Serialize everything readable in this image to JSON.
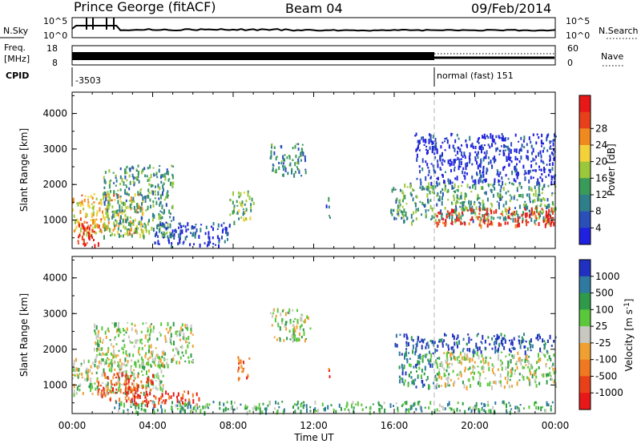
{
  "header": {
    "station": "Prince George (fitACF)",
    "beam": "Beam 04",
    "date": "09/Feb/2014"
  },
  "strip_panels": {
    "nsky_label": "N.Sky",
    "nsearch_label": "N.Search",
    "noise_tick_high": "10^5",
    "noise_tick_low": "10^0",
    "freq_label_line1": "Freq.",
    "freq_label_line2": "[MHz]",
    "freq_tick_high": "18",
    "freq_tick_low": "8",
    "nave_label": "Nave",
    "nave_tick_high": "60",
    "nave_tick_low": "0",
    "cpid_label": "CPID",
    "cpid_segments": [
      {
        "start_hour": 0,
        "text": "-3503"
      },
      {
        "start_hour": 18,
        "text": "normal (fast) 151"
      }
    ]
  },
  "x_axis": {
    "label": "Time UT",
    "ticks": [
      "00:00",
      "04:00",
      "08:00",
      "12:00",
      "16:00",
      "20:00",
      "00:00"
    ],
    "tick_hours": [
      0,
      4,
      8,
      12,
      16,
      20,
      24
    ]
  },
  "chart_data": [
    {
      "type": "heatmap",
      "panel": "power",
      "ylabel": "Slant Range [km]",
      "y_ticks": [
        "1000",
        "2000",
        "3000",
        "4000"
      ],
      "ylim": [
        200,
        4600
      ],
      "xlim": [
        0,
        24
      ],
      "colorbar_label": "Power [dB]",
      "colorbar_ticks": [
        "4",
        "8",
        "12",
        "16",
        "20",
        "24",
        "28"
      ],
      "colorbar_colors": [
        "#2020e0",
        "#2a4fb8",
        "#2f7f8a",
        "#3a9a5a",
        "#9ac83a",
        "#f2d13a",
        "#f08a1e",
        "#e8401a",
        "#e81818"
      ],
      "scatter_regions": [
        {
          "t": [
            0.0,
            3.6
          ],
          "range": [
            500,
            1700
          ],
          "level": 0.62
        },
        {
          "t": [
            0.2,
            1.3
          ],
          "range": [
            250,
            900
          ],
          "level": 0.95
        },
        {
          "t": [
            1.5,
            5.0
          ],
          "range": [
            500,
            2500
          ],
          "level": 0.35
        },
        {
          "t": [
            4.0,
            7.8
          ],
          "range": [
            250,
            900
          ],
          "level": 0.12
        },
        {
          "t": [
            7.8,
            9.0
          ],
          "range": [
            900,
            1800
          ],
          "level": 0.45
        },
        {
          "t": [
            9.8,
            11.6
          ],
          "range": [
            2200,
            3100
          ],
          "level": 0.3
        },
        {
          "t": [
            12.6,
            12.8
          ],
          "range": [
            1000,
            1600
          ],
          "level": 0.25
        },
        {
          "t": [
            15.8,
            24.0
          ],
          "range": [
            900,
            2000
          ],
          "level": 0.38
        },
        {
          "t": [
            18.0,
            24.0
          ],
          "range": [
            800,
            1300
          ],
          "level": 0.92
        },
        {
          "t": [
            17.0,
            24.0
          ],
          "range": [
            2000,
            3400
          ],
          "level": 0.08
        }
      ]
    },
    {
      "type": "heatmap",
      "panel": "velocity",
      "ylabel": "Slant Range [km]",
      "y_ticks": [
        "1000",
        "2000",
        "3000",
        "4000"
      ],
      "ylim": [
        200,
        4600
      ],
      "xlim": [
        0,
        24
      ],
      "colorbar_label": "Velocity [m s^-1]",
      "colorbar_ticks": [
        "1000",
        "500",
        "100",
        "25",
        "-25",
        "-100",
        "-500",
        "-1000"
      ],
      "colorbar_colors": [
        "#2030c0",
        "#2f7aa0",
        "#2e9a4a",
        "#5ac83a",
        "#c8c8c0",
        "#f0a030",
        "#f07820",
        "#e84018",
        "#e81818"
      ],
      "scatter_regions": [
        {
          "t": [
            0.0,
            4.5
          ],
          "range": [
            700,
            1700
          ],
          "level": 0.45
        },
        {
          "t": [
            1.2,
            4.0
          ],
          "range": [
            500,
            1300
          ],
          "level": 0.82
        },
        {
          "t": [
            3.0,
            6.5
          ],
          "range": [
            400,
            800
          ],
          "level": 0.85
        },
        {
          "t": [
            1.0,
            6.0
          ],
          "range": [
            1500,
            2700
          ],
          "level": 0.45
        },
        {
          "t": [
            8.2,
            8.8
          ],
          "range": [
            1100,
            1800
          ],
          "level": 0.8
        },
        {
          "t": [
            9.8,
            11.8
          ],
          "range": [
            2200,
            3100
          ],
          "level": 0.45
        },
        {
          "t": [
            12.6,
            12.8
          ],
          "range": [
            1200,
            1500
          ],
          "level": 0.8
        },
        {
          "t": [
            16.2,
            18.2
          ],
          "range": [
            900,
            1900
          ],
          "level": 0.22
        },
        {
          "t": [
            18.0,
            24.0
          ],
          "range": [
            900,
            1900
          ],
          "level": 0.45
        },
        {
          "t": [
            16.0,
            24.0
          ],
          "range": [
            1900,
            2400
          ],
          "level": 0.08
        },
        {
          "t": [
            2.0,
            24.0
          ],
          "range": [
            200,
            500
          ],
          "level": 0.3
        }
      ]
    }
  ]
}
